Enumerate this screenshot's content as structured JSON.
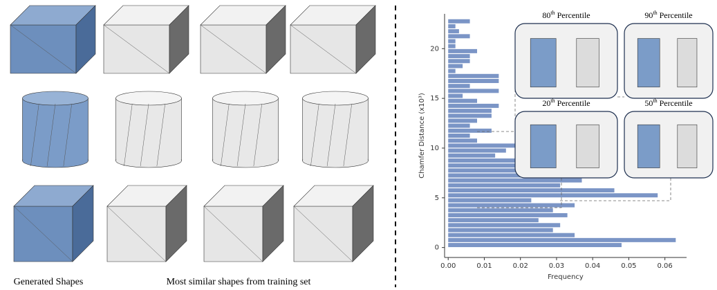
{
  "figure": {
    "captions": [
      "Generated Shapes",
      "Most similar shapes from training set"
    ]
  },
  "chart_data": {
    "type": "histogram",
    "orientation": "horizontal",
    "ylabel": "Chamfer Distance (x10³)",
    "xlabel": "Frequency",
    "bins": [
      0,
      0.5,
      1,
      1.5,
      2,
      2.5,
      3,
      3.5,
      4,
      4.5,
      5,
      5.5,
      6,
      6.5,
      7,
      7.5,
      8,
      8.5,
      9,
      9.5,
      10,
      10.5,
      11,
      11.5,
      12,
      12.5,
      13,
      13.5,
      14,
      14.5,
      15,
      15.5,
      16,
      16.5,
      17,
      17.5,
      18,
      18.5,
      19,
      19.5,
      20,
      20.5,
      21,
      21.5,
      22,
      22.5,
      23
    ],
    "counts": [
      0.048,
      0.063,
      0.035,
      0.029,
      0.031,
      0.025,
      0.033,
      0.029,
      0.035,
      0.023,
      0.058,
      0.046,
      0.031,
      0.037,
      0.031,
      0.019,
      0.019,
      0.025,
      0.013,
      0.016,
      0.019,
      0.008,
      0.006,
      0.012,
      0.006,
      0.008,
      0.012,
      0.012,
      0.014,
      0.008,
      0.004,
      0.014,
      0.006,
      0.014,
      0.014,
      0.002,
      0.004,
      0.006,
      0.006,
      0.008,
      0.002,
      0.002,
      0.006,
      0.003,
      0.002,
      0.006
    ],
    "color": "#7b95c6",
    "xlim": [
      -0.001,
      0.066
    ],
    "xticks": [
      {
        "value": 0,
        "label": "0.00"
      },
      {
        "value": 0.01,
        "label": "0.01"
      },
      {
        "value": 0.02,
        "label": "0.02"
      },
      {
        "value": 0.03,
        "label": "0.03"
      },
      {
        "value": 0.04,
        "label": "0.04"
      },
      {
        "value": 0.05,
        "label": "0.05"
      },
      {
        "value": 0.06,
        "label": "0.06"
      }
    ],
    "ylim": [
      -1,
      23.5
    ],
    "yticks": [
      0,
      5,
      10,
      15,
      20
    ],
    "insets": [
      {
        "rank": "80",
        "ordinal": "th",
        "text": "Percentile"
      },
      {
        "rank": "90",
        "ordinal": "th",
        "text": "Percentile"
      },
      {
        "rank": "20",
        "ordinal": "th",
        "text": "Percentile"
      },
      {
        "rank": "50",
        "ordinal": "th",
        "text": "Percentile"
      }
    ]
  }
}
